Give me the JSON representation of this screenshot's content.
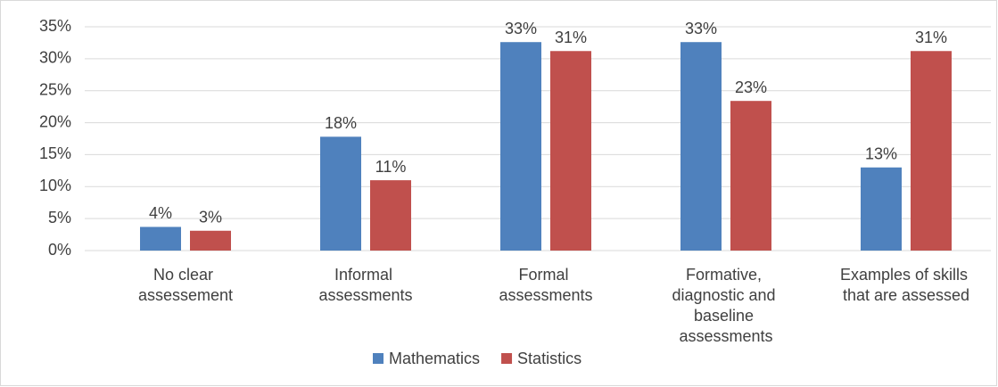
{
  "chart_data": {
    "type": "bar",
    "categories": [
      "No clear assessement",
      "Informal assessments",
      "Formal assessments",
      "Formative, diagnostic and baseline assessments",
      "Examples of skills that are assessed"
    ],
    "series": [
      {
        "name": "Mathematics",
        "color": "#4f81bd",
        "values": [
          3.7,
          17.8,
          32.6,
          32.6,
          13.0
        ],
        "value_labels": [
          "4%",
          "18%",
          "33%",
          "33%",
          "13%"
        ]
      },
      {
        "name": "Statistics",
        "color": "#c0504d",
        "values": [
          3.1,
          11.0,
          31.2,
          23.4,
          31.2
        ],
        "value_labels": [
          "3%",
          "11%",
          "31%",
          "23%",
          "31%"
        ]
      }
    ],
    "ylim": [
      0,
      35
    ],
    "yticks": [
      {
        "value": 0,
        "label": "0%"
      },
      {
        "value": 5,
        "label": "5%"
      },
      {
        "value": 10,
        "label": "10%"
      },
      {
        "value": 15,
        "label": "15%"
      },
      {
        "value": 20,
        "label": "20%"
      },
      {
        "value": 25,
        "label": "25%"
      },
      {
        "value": 30,
        "label": "30%"
      },
      {
        "value": 35,
        "label": "35%"
      }
    ],
    "grid": true,
    "legend": "bottom"
  }
}
